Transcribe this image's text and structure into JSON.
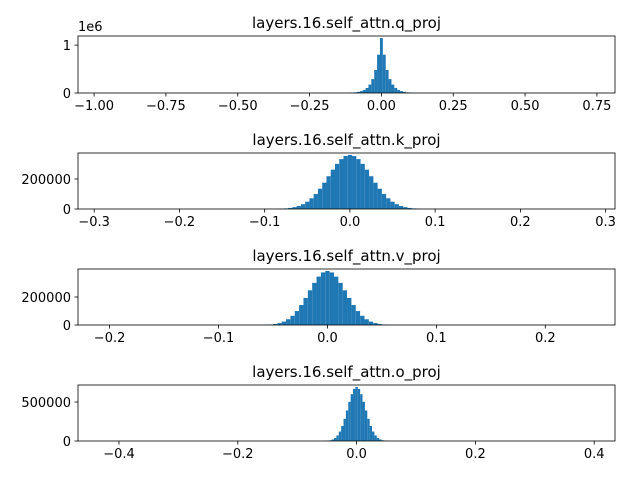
{
  "chart_data": [
    {
      "type": "histogram",
      "title": "layers.16.self_attn.q_proj",
      "color": "#1f77b4",
      "bins": [
        -0.145,
        -0.135,
        -0.125,
        -0.115,
        -0.105,
        -0.095,
        -0.085,
        -0.075,
        -0.065,
        -0.055,
        -0.045,
        -0.035,
        -0.025,
        -0.015,
        -0.005,
        0.005,
        0.015,
        0.025,
        0.035,
        0.045,
        0.055,
        0.065,
        0.075,
        0.085,
        0.095,
        0.105,
        0.115,
        0.125,
        0.135,
        0.145
      ],
      "counts": [
        800,
        1500,
        3000,
        5000,
        8000,
        14000,
        24000,
        39000,
        64000,
        105000,
        175000,
        290000,
        480000,
        800000,
        1146000,
        800000,
        480000,
        290000,
        175000,
        105000,
        64000,
        39000,
        24000,
        14000,
        8000,
        5000,
        3000,
        1500,
        800
      ],
      "xlim": [
        -1.056,
        0.813
      ],
      "ylim": [
        0,
        1190000
      ],
      "xticks": [
        {
          "value": -1.0,
          "label": "−1.00"
        },
        {
          "value": -0.75,
          "label": "−0.75"
        },
        {
          "value": -0.5,
          "label": "−0.50"
        },
        {
          "value": -0.25,
          "label": "−0.25"
        },
        {
          "value": 0,
          "label": "0.00"
        },
        {
          "value": 0.25,
          "label": "0.25"
        },
        {
          "value": 0.5,
          "label": "0.50"
        },
        {
          "value": 0.75,
          "label": "0.75"
        }
      ],
      "yticks": [
        0,
        {
          "value": 1000000,
          "label": "1"
        }
      ],
      "y_offset_label": "1e6"
    },
    {
      "type": "histogram",
      "title": "layers.16.self_attn.k_proj",
      "color": "#1f77b4",
      "bins": [
        -0.1025,
        -0.0975,
        -0.0925,
        -0.0875,
        -0.0825,
        -0.0775,
        -0.0725,
        -0.0675,
        -0.0625,
        -0.0575,
        -0.0525,
        -0.0475,
        -0.0425,
        -0.0375,
        -0.0325,
        -0.0275,
        -0.0225,
        -0.0175,
        -0.0125,
        -0.0075,
        -0.0025,
        0.0025,
        0.0075,
        0.0125,
        0.0175,
        0.0225,
        0.0275,
        0.0325,
        0.0375,
        0.0425,
        0.0475,
        0.0525,
        0.0575,
        0.0625,
        0.0675,
        0.0725,
        0.0775,
        0.0825,
        0.0875,
        0.0925,
        0.0975,
        0.1025
      ],
      "counts": [
        130,
        270,
        550,
        1100,
        2100,
        4000,
        7100,
        12300,
        20200,
        32000,
        48700,
        71200,
        100000,
        135100,
        175200,
        218400,
        262000,
        300700,
        332300,
        352900,
        360000,
        352900,
        332300,
        300700,
        262000,
        218400,
        175200,
        135100,
        100000,
        71200,
        48700,
        32000,
        20200,
        12300,
        7100,
        4000,
        2100,
        1100,
        550,
        270,
        130
      ],
      "xlim": [
        -0.319,
        0.311
      ],
      "ylim": [
        0,
        373000
      ],
      "xticks": [
        {
          "value": -0.3,
          "label": "−0.3"
        },
        {
          "value": -0.2,
          "label": "−0.2"
        },
        {
          "value": -0.1,
          "label": "−0.1"
        },
        {
          "value": 0,
          "label": "0.0"
        },
        0.1,
        0.2,
        0.3
      ],
      "yticks": [
        0,
        200000
      ]
    },
    {
      "type": "histogram",
      "title": "layers.16.self_attn.v_proj",
      "color": "#1f77b4",
      "bins": [
        -0.062,
        -0.058,
        -0.054,
        -0.05,
        -0.046,
        -0.042,
        -0.038,
        -0.034,
        -0.03,
        -0.026,
        -0.022,
        -0.018,
        -0.014,
        -0.01,
        -0.006,
        -0.002,
        0.002,
        0.006,
        0.01,
        0.014,
        0.018,
        0.022,
        0.026,
        0.03,
        0.034,
        0.038,
        0.042,
        0.046,
        0.05,
        0.054,
        0.058,
        0.062
      ],
      "counts": [
        800,
        1700,
        3600,
        7200,
        13500,
        24300,
        41100,
        65700,
        99500,
        142500,
        193200,
        247900,
        300900,
        345600,
        375500,
        386000,
        375500,
        345600,
        300900,
        247900,
        193200,
        142500,
        99500,
        65700,
        41100,
        24300,
        13500,
        7200,
        3600,
        1700,
        800
      ],
      "xlim": [
        -0.229,
        0.264
      ],
      "ylim": [
        0,
        400000
      ],
      "xticks": [
        {
          "value": -0.2,
          "label": "−0.2"
        },
        {
          "value": -0.1,
          "label": "−0.1"
        },
        {
          "value": 0,
          "label": "0.0"
        },
        0.1,
        0.2
      ],
      "yticks": [
        0,
        200000
      ]
    },
    {
      "type": "histogram",
      "title": "layers.16.self_attn.o_proj",
      "color": "#1f77b4",
      "bins": [
        -0.062,
        -0.058,
        -0.054,
        -0.05,
        -0.046,
        -0.042,
        -0.038,
        -0.034,
        -0.03,
        -0.026,
        -0.022,
        -0.018,
        -0.014,
        -0.01,
        -0.006,
        -0.002,
        0.002,
        0.006,
        0.01,
        0.014,
        0.018,
        0.022,
        0.026,
        0.03,
        0.034,
        0.038,
        0.042,
        0.046,
        0.05,
        0.054,
        0.058,
        0.062
      ],
      "counts": [
        200,
        700,
        1700,
        4200,
        9400,
        19800,
        38800,
        71100,
        121100,
        192400,
        284500,
        391300,
        502500,
        600200,
        667800,
        692000,
        667800,
        600200,
        502500,
        391300,
        284500,
        192400,
        121100,
        71100,
        38800,
        19800,
        9400,
        4200,
        1700,
        700,
        200
      ],
      "xlim": [
        -0.469,
        0.435
      ],
      "ylim": [
        0,
        718000
      ],
      "xticks": [
        {
          "value": -0.4,
          "label": "−0.4"
        },
        {
          "value": -0.2,
          "label": "−0.2"
        },
        {
          "value": 0,
          "label": "0.0"
        },
        0.2,
        0.4
      ],
      "yticks": [
        0,
        500000
      ]
    }
  ]
}
